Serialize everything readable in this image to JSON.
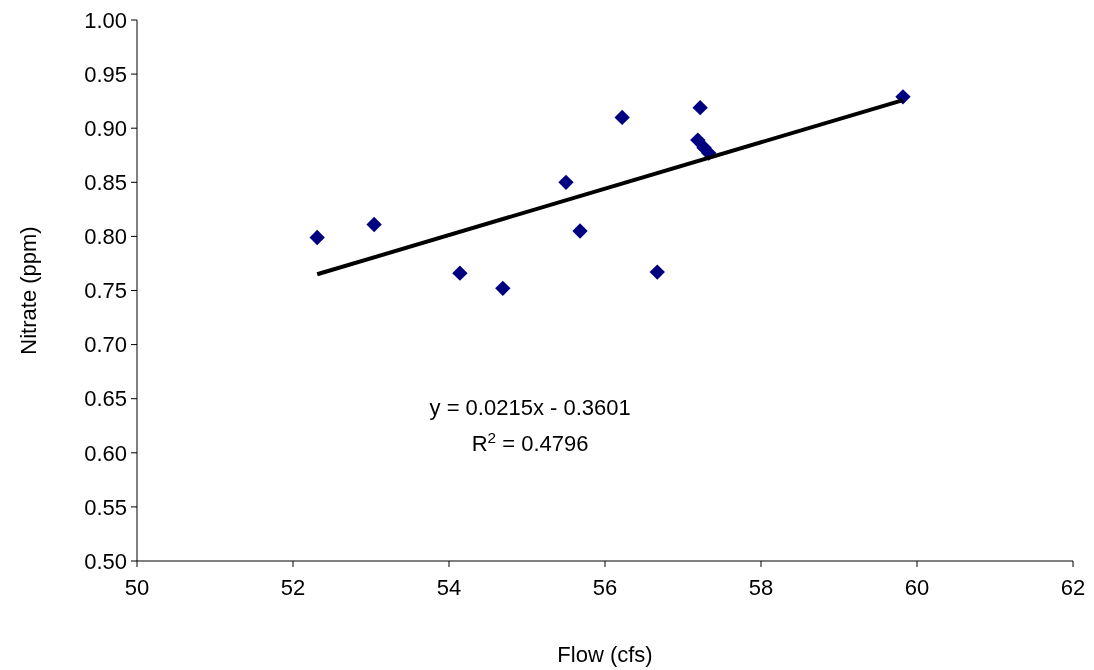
{
  "chart_data": {
    "type": "scatter",
    "xlabel": "Flow (cfs)",
    "ylabel": "Nitrate (ppm)",
    "xlim": [
      50,
      62
    ],
    "xticks": [
      50,
      52,
      54,
      56,
      58,
      60,
      62
    ],
    "ylim": [
      0.5,
      1.0
    ],
    "yticks": [
      {
        "value": 0.5,
        "label": "0.50"
      },
      {
        "value": 0.55,
        "label": "0.55"
      },
      {
        "value": 0.6,
        "label": "0.60"
      },
      {
        "value": 0.65,
        "label": "0.65"
      },
      {
        "value": 0.7,
        "label": "0.70"
      },
      {
        "value": 0.75,
        "label": "0.75"
      },
      {
        "value": 0.8,
        "label": "0.80"
      },
      {
        "value": 0.85,
        "label": "0.85"
      },
      {
        "value": 0.9,
        "label": "0.90"
      },
      {
        "value": 0.95,
        "label": "0.95"
      },
      {
        "value": 1.0,
        "label": "1.00"
      }
    ],
    "grid": false,
    "marker": "diamond",
    "series": [
      {
        "color": "#000080",
        "x": [
          52.31,
          53.04,
          54.14,
          54.69,
          55.5,
          55.68,
          56.22,
          56.67,
          57.19,
          57.22,
          57.27,
          57.33,
          59.82
        ],
        "values": [
          0.799,
          0.811,
          0.766,
          0.752,
          0.85,
          0.805,
          0.91,
          0.767,
          0.889,
          0.919,
          0.882,
          0.877,
          0.929
        ]
      },
      {
        "type": "line",
        "color": "#000000",
        "marker": "none",
        "line_style": "solid",
        "x": [
          52.31,
          59.82
        ],
        "values": [
          0.765,
          0.926
        ]
      }
    ],
    "annotations": [
      "y = 0.0215x - 0.3601",
      "R$^{2}$ = 0.4796"
    ]
  }
}
